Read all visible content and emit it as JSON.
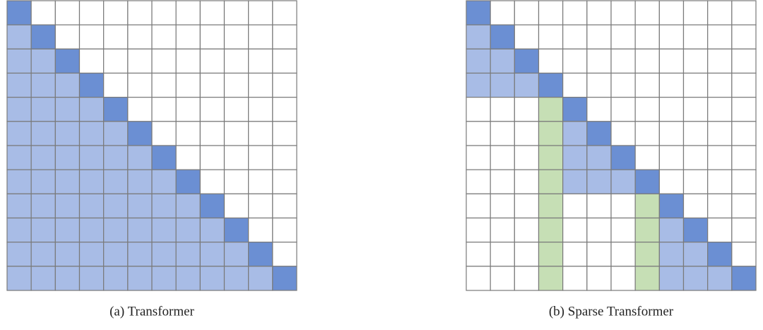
{
  "panels": [
    {
      "caption": "(a) Transformer"
    },
    {
      "caption": "(b) Sparse Transformer"
    }
  ]
}
